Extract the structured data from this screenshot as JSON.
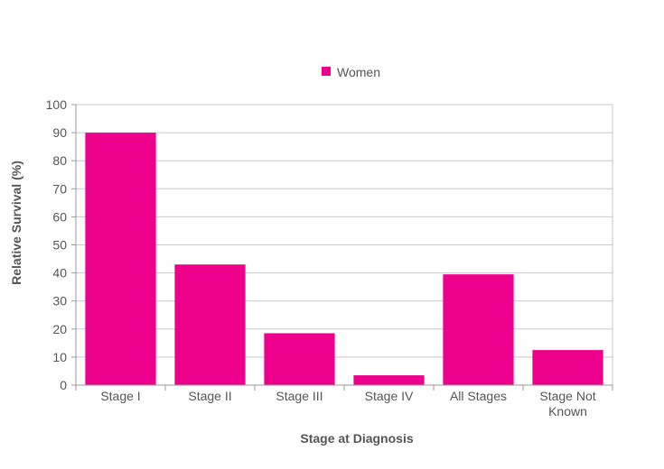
{
  "chart_data": {
    "type": "bar",
    "categories": [
      "Stage I",
      "Stage II",
      "Stage III",
      "Stage IV",
      "All Stages",
      "Stage Not Known"
    ],
    "category_lines": [
      [
        "Stage I"
      ],
      [
        "Stage II"
      ],
      [
        "Stage III"
      ],
      [
        "Stage IV"
      ],
      [
        "All Stages"
      ],
      [
        "Stage Not",
        "Known"
      ]
    ],
    "series": [
      {
        "name": "Women",
        "values": [
          90,
          43,
          18.5,
          3.5,
          39.5,
          12.5
        ],
        "color": "#ec008c"
      }
    ],
    "xlabel": "Stage at Diagnosis",
    "ylabel": "Relative Survival (%)",
    "ylim": [
      0,
      100
    ],
    "yticks": [
      0,
      10,
      20,
      30,
      40,
      50,
      60,
      70,
      80,
      90,
      100
    ],
    "grid": true,
    "legend_position": "top-center"
  }
}
